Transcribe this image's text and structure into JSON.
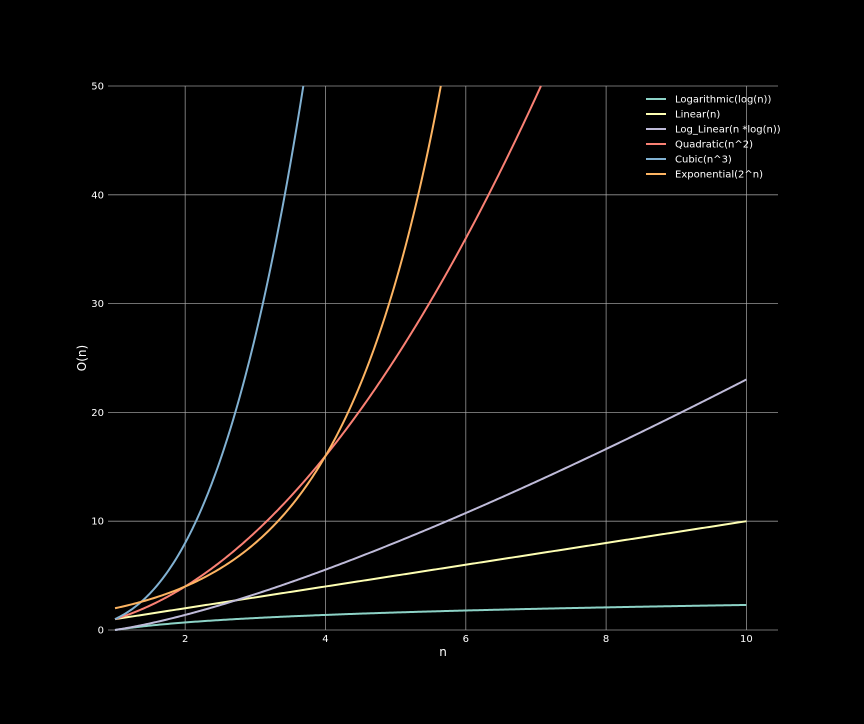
{
  "chart_data": {
    "type": "line",
    "title": "",
    "xlabel": "n",
    "ylabel": "O(n)",
    "xlim": [
      0.9,
      10.45
    ],
    "ylim": [
      0,
      50
    ],
    "x_ticks": [
      2,
      4,
      6,
      8,
      10
    ],
    "y_ticks": [
      0,
      10,
      20,
      30,
      40,
      50
    ],
    "x_tick_labels": [
      "2",
      "4",
      "6",
      "8",
      "10"
    ],
    "y_tick_labels": [
      "0",
      "10",
      "20",
      "30",
      "40",
      "50"
    ],
    "grid": true,
    "legend_position": "top-right",
    "background": "#000000",
    "x_range": [
      1,
      10
    ],
    "series": [
      {
        "name": "Logarithmic(log(n))",
        "color": "#8dd3c7",
        "x": [
          1,
          2,
          3,
          4,
          5,
          6,
          7,
          8,
          9,
          10
        ],
        "y": [
          0,
          0.69,
          1.1,
          1.39,
          1.61,
          1.79,
          1.95,
          2.08,
          2.2,
          2.3
        ]
      },
      {
        "name": "Linear(n)",
        "color": "#feffb3",
        "x": [
          1,
          10
        ],
        "y": [
          1,
          10
        ]
      },
      {
        "name": "Log_Linear(n *log(n))",
        "color": "#bfbbd9",
        "x": [
          1,
          2,
          3,
          4,
          5,
          6,
          7,
          8,
          9,
          10
        ],
        "y": [
          0,
          1.39,
          3.3,
          5.55,
          8.05,
          10.75,
          13.62,
          16.64,
          19.78,
          23.03
        ]
      },
      {
        "name": "Quadratic(n^2)",
        "color": "#fa8174",
        "x": [
          1,
          2,
          3,
          4,
          5,
          6,
          7,
          7.07
        ],
        "y": [
          1,
          4,
          9,
          16,
          25,
          36,
          49,
          50
        ]
      },
      {
        "name": "Cubic(n^3)",
        "color": "#81b1d2",
        "x": [
          1,
          1.5,
          2,
          2.5,
          3,
          3.5,
          3.68
        ],
        "y": [
          1,
          3.38,
          8,
          15.63,
          27,
          42.88,
          50
        ]
      },
      {
        "name": "Exponential(2^n)",
        "color": "#fdb462",
        "x": [
          1,
          2,
          3,
          4,
          4.5,
          5,
          5.5,
          5.64
        ],
        "y": [
          2,
          4,
          8,
          16,
          22.63,
          32,
          45.25,
          50
        ]
      }
    ]
  }
}
